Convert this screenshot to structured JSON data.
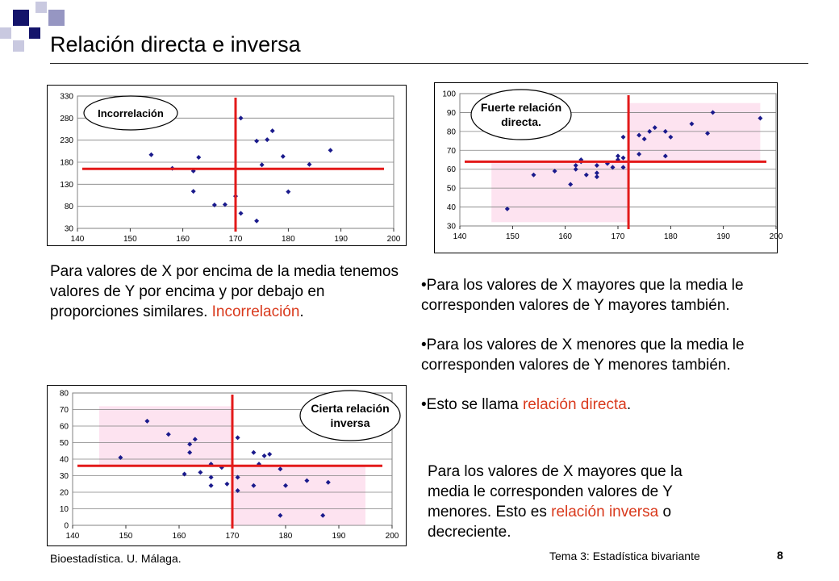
{
  "title": "Relación directa e inversa",
  "charts": [
    {
      "type": "scatter",
      "annotation": "Incorrelación",
      "xlim": [
        140,
        200
      ],
      "ylim": [
        30,
        330
      ],
      "x_ticks": [
        140,
        150,
        160,
        170,
        180,
        190,
        200
      ],
      "y_ticks": [
        30,
        80,
        130,
        180,
        230,
        280,
        330
      ],
      "mean_x": 170,
      "mean_y": 165,
      "grid": "horizontal",
      "points": [
        [
          154,
          197
        ],
        [
          158,
          166
        ],
        [
          162,
          160
        ],
        [
          162,
          114
        ],
        [
          163,
          191
        ],
        [
          166,
          83
        ],
        [
          168,
          84
        ],
        [
          170,
          103
        ],
        [
          171,
          280
        ],
        [
          171,
          64
        ],
        [
          174,
          228
        ],
        [
          174,
          47
        ],
        [
          175,
          174
        ],
        [
          176,
          231
        ],
        [
          177,
          251
        ],
        [
          179,
          193
        ],
        [
          180,
          113
        ],
        [
          184,
          175
        ],
        [
          188,
          207
        ]
      ],
      "shade": []
    },
    {
      "type": "scatter",
      "annotation": "Fuerte relación directa.",
      "xlim": [
        140,
        200
      ],
      "ylim": [
        30,
        100
      ],
      "x_ticks": [
        140,
        150,
        160,
        170,
        180,
        190,
        200
      ],
      "y_ticks": [
        30,
        40,
        50,
        60,
        70,
        80,
        90,
        100
      ],
      "mean_x": 172,
      "mean_y": 64,
      "grid": "horizontal",
      "points": [
        [
          149,
          39
        ],
        [
          154,
          57
        ],
        [
          158,
          59
        ],
        [
          161,
          52
        ],
        [
          162,
          60
        ],
        [
          162,
          62
        ],
        [
          163,
          64
        ],
        [
          163,
          65
        ],
        [
          164,
          57
        ],
        [
          166,
          56
        ],
        [
          166,
          58
        ],
        [
          166,
          62
        ],
        [
          168,
          63
        ],
        [
          169,
          61
        ],
        [
          170,
          67
        ],
        [
          170,
          65
        ],
        [
          171,
          61
        ],
        [
          171,
          66
        ],
        [
          171,
          77
        ],
        [
          174,
          78
        ],
        [
          174,
          68
        ],
        [
          175,
          76
        ],
        [
          176,
          80
        ],
        [
          177,
          82
        ],
        [
          179,
          80
        ],
        [
          179,
          67
        ],
        [
          180,
          77
        ],
        [
          184,
          84
        ],
        [
          187,
          79
        ],
        [
          188,
          90
        ],
        [
          197,
          87
        ]
      ],
      "shade": [
        [
          146,
          172,
          32,
          64
        ],
        [
          172,
          197,
          64,
          95
        ]
      ]
    },
    {
      "type": "scatter",
      "annotation": "Cierta relación inversa",
      "xlim": [
        140,
        200
      ],
      "ylim": [
        0,
        80
      ],
      "x_ticks": [
        140,
        150,
        160,
        170,
        180,
        190,
        200
      ],
      "y_ticks": [
        0,
        10,
        20,
        30,
        40,
        50,
        60,
        70,
        80
      ],
      "mean_x": 170,
      "mean_y": 36,
      "grid": "horizontal",
      "points": [
        [
          149,
          41
        ],
        [
          154,
          63
        ],
        [
          158,
          55
        ],
        [
          161,
          31
        ],
        [
          162,
          49
        ],
        [
          162,
          44
        ],
        [
          163,
          52
        ],
        [
          164,
          32
        ],
        [
          166,
          37
        ],
        [
          166,
          29
        ],
        [
          166,
          24
        ],
        [
          168,
          35
        ],
        [
          169,
          25
        ],
        [
          170,
          36
        ],
        [
          171,
          53
        ],
        [
          171,
          29
        ],
        [
          171,
          21
        ],
        [
          174,
          44
        ],
        [
          174,
          24
        ],
        [
          175,
          37
        ],
        [
          176,
          42
        ],
        [
          177,
          43
        ],
        [
          179,
          34
        ],
        [
          179,
          6
        ],
        [
          180,
          24
        ],
        [
          184,
          27
        ],
        [
          187,
          6
        ],
        [
          188,
          26
        ]
      ],
      "shade": [
        [
          145,
          170,
          36,
          72
        ],
        [
          170,
          195,
          0,
          36
        ]
      ]
    }
  ],
  "texts": {
    "p1": "Para valores de X por encima de la media tenemos valores de Y por encima y por debajo en proporciones similares.",
    "p1_hl": "Incorrelación",
    "p1_end": ".",
    "b1": "•Para los valores de X mayores que la media le corresponden valores de Y mayores también.",
    "b2": "•Para los valores de X menores que la media le corresponden valores de Y menores también.",
    "b3_pre": "•Esto se llama ",
    "b3_hl": "relación directa",
    "b3_end": ".",
    "p3_pre": "Para los valores de X mayores que la media le corresponden valores de Y menores. Esto es ",
    "p3_hl": "relación inversa",
    "p3_end": " o decreciente."
  },
  "footer": {
    "left": "Bioestadística. U. Málaga.",
    "center": "Tema 3: Estadística bivariante",
    "page": "8"
  }
}
